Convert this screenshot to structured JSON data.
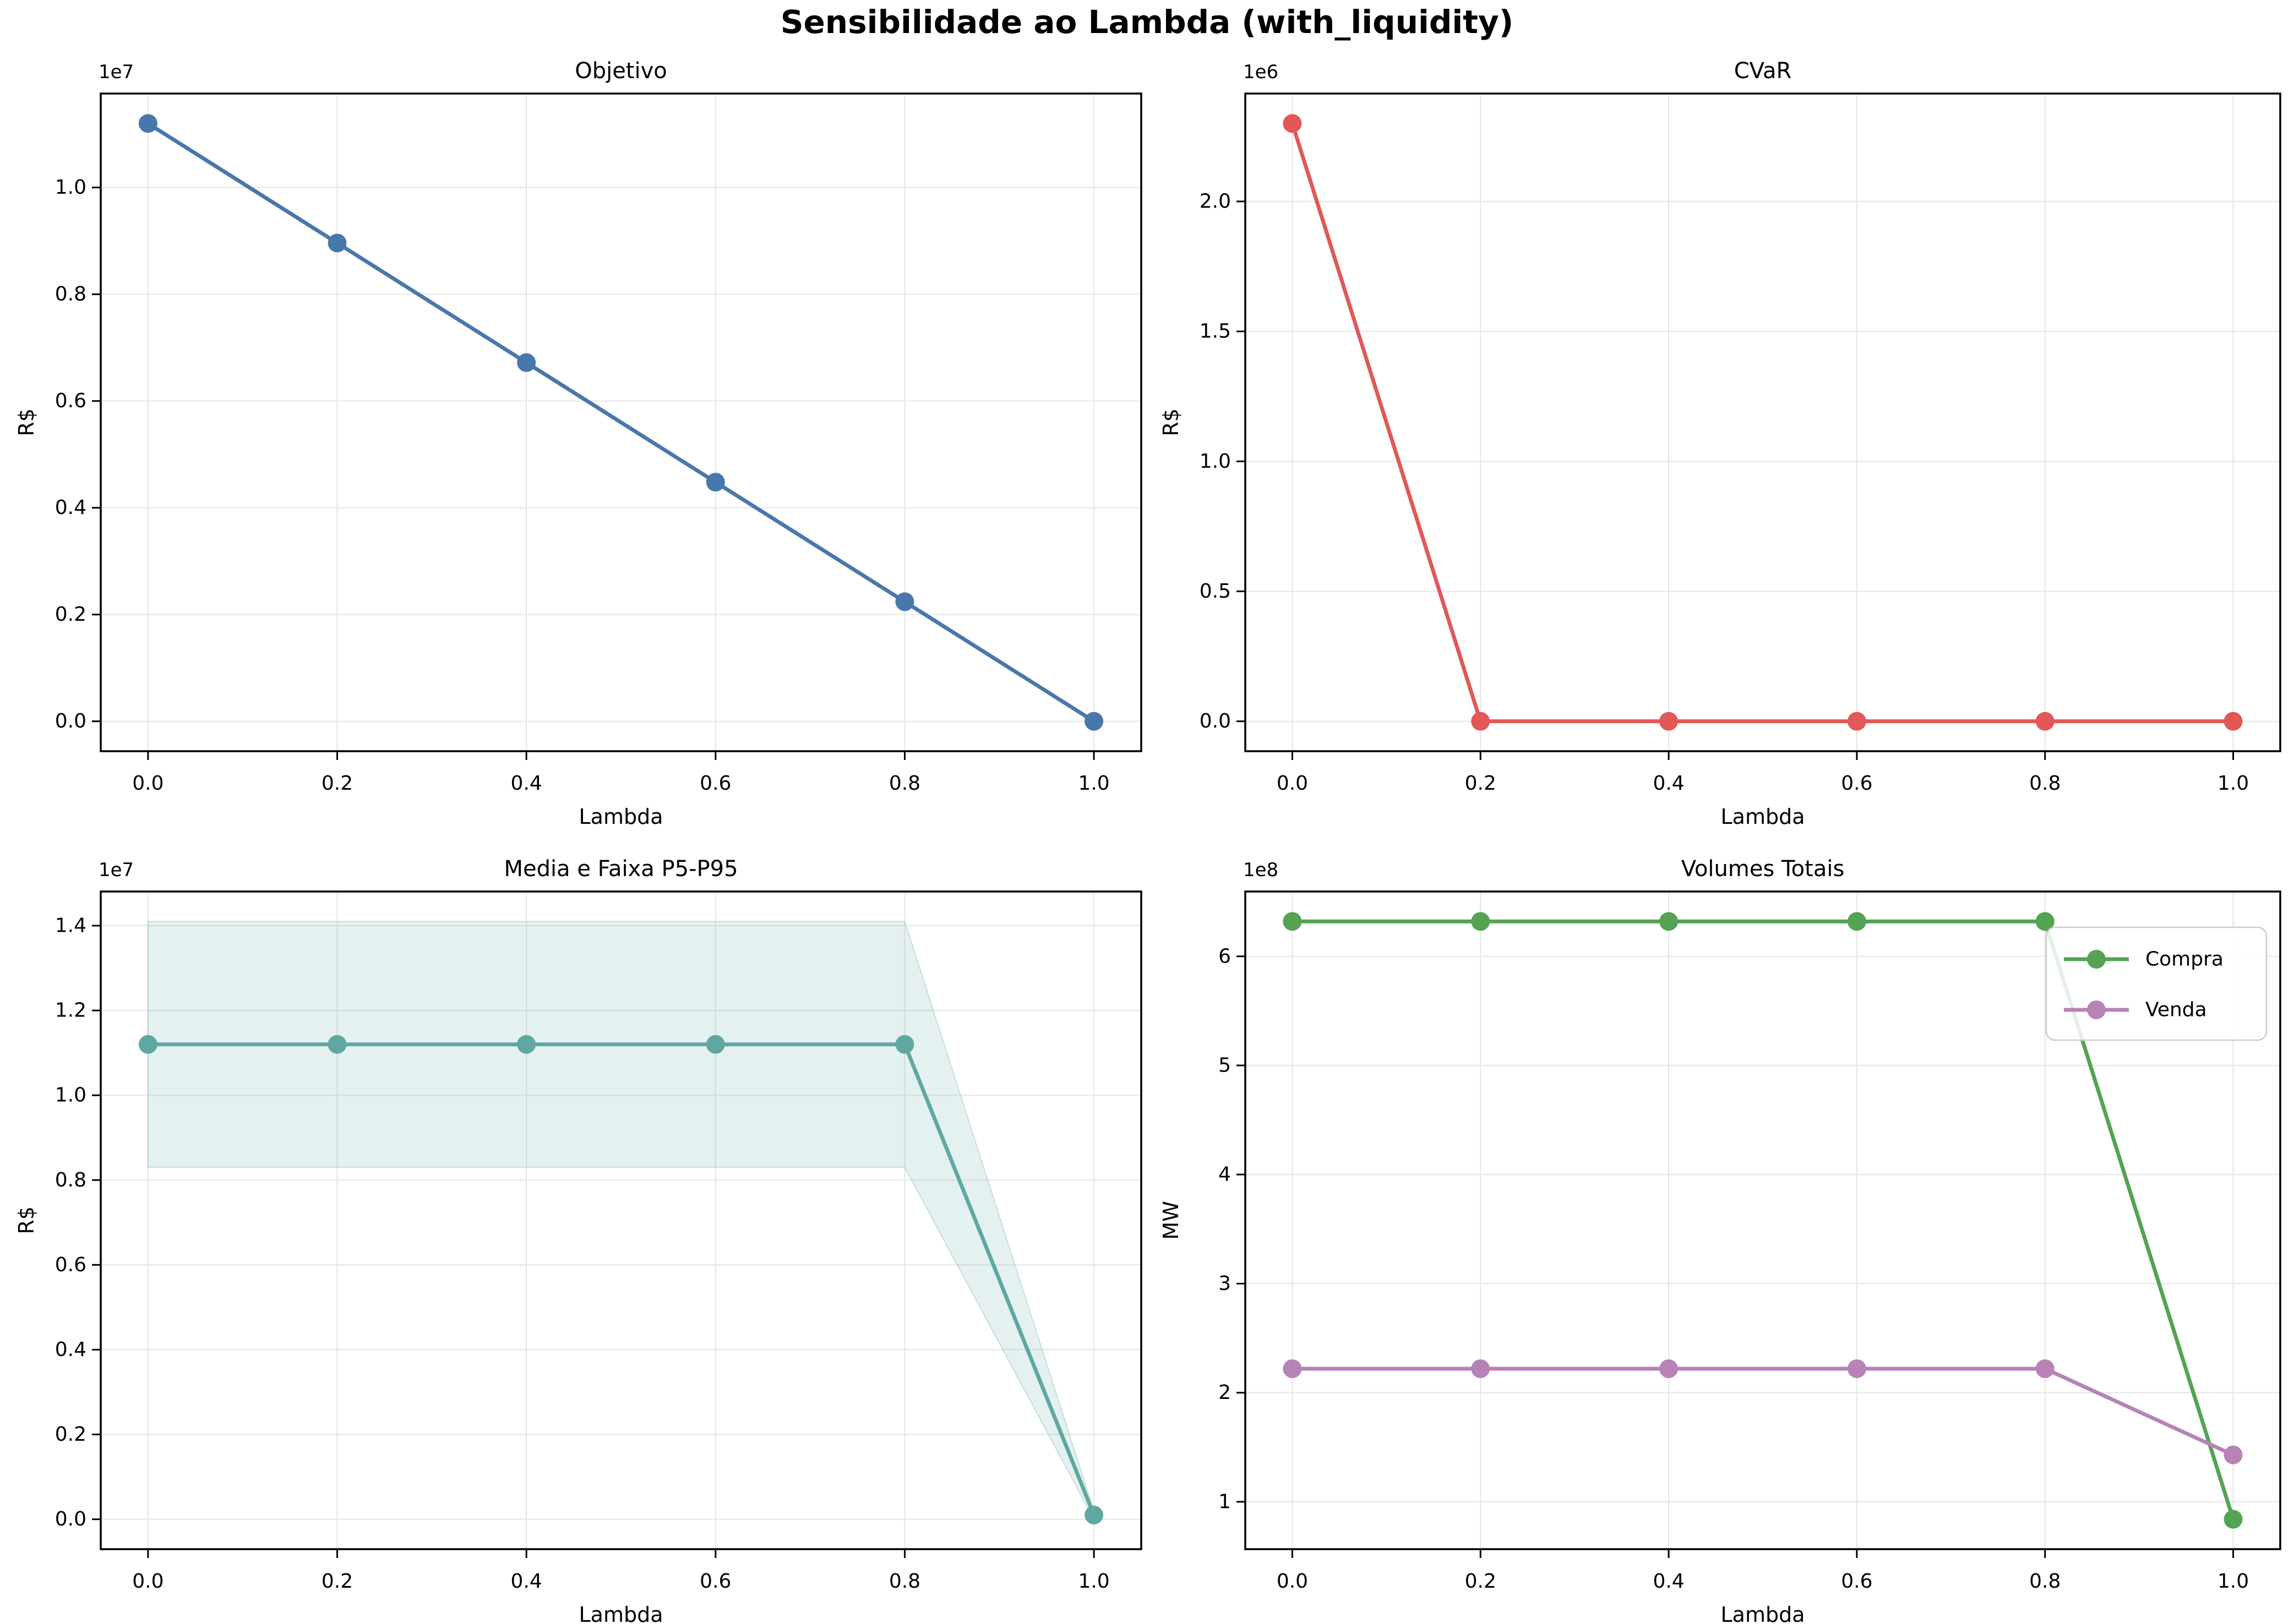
{
  "figure": {
    "title": "Sensibilidade ao Lambda (with_liquidity)"
  },
  "colors": {
    "objetivo_line": "#4878ab",
    "cvar_line": "#e25757",
    "media_line": "#5fa8a2",
    "faixa_band": "#5fa8a2",
    "compra_line": "#53a353",
    "venda_line": "#b783b7",
    "grid": "#e7e7e7",
    "spine": "#000000",
    "text": "#000000",
    "legend_border": "#cccccc"
  },
  "chart_data": [
    {
      "id": "objetivo",
      "type": "line",
      "title": "Objetivo",
      "xlabel": "Lambda",
      "ylabel": "R$",
      "offset_text": "1e7",
      "grid": true,
      "x": [
        0.0,
        0.2,
        0.4,
        0.6,
        0.8,
        1.0
      ],
      "xlim": [
        -0.05,
        1.05
      ],
      "xtick_values": [
        0.0,
        0.2,
        0.4,
        0.6,
        0.8,
        1.0
      ],
      "xtick_labels": [
        "0.0",
        "0.2",
        "0.4",
        "0.6",
        "0.8",
        "1.0"
      ],
      "ylim": [
        -560000,
        11760000
      ],
      "ytick_values": [
        0,
        2000000,
        4000000,
        6000000,
        8000000,
        10000000
      ],
      "ytick_labels": [
        "0.0",
        "0.2",
        "0.4",
        "0.6",
        "0.8",
        "1.0"
      ],
      "series": [
        {
          "name": "Objetivo",
          "color_key": "objetivo_line",
          "values": [
            11200000,
            8960000,
            6720000,
            4480000,
            2240000,
            0
          ]
        }
      ]
    },
    {
      "id": "cvar",
      "type": "line",
      "title": "CVaR",
      "xlabel": "Lambda",
      "ylabel": "R$",
      "offset_text": "1e6",
      "grid": true,
      "x": [
        0.0,
        0.2,
        0.4,
        0.6,
        0.8,
        1.0
      ],
      "xlim": [
        -0.05,
        1.05
      ],
      "xtick_values": [
        0.0,
        0.2,
        0.4,
        0.6,
        0.8,
        1.0
      ],
      "xtick_labels": [
        "0.0",
        "0.2",
        "0.4",
        "0.6",
        "0.8",
        "1.0"
      ],
      "ylim": [
        -115000,
        2415000
      ],
      "ytick_values": [
        0,
        500000,
        1000000,
        1500000,
        2000000
      ],
      "ytick_labels": [
        "0.0",
        "0.5",
        "1.0",
        "1.5",
        "2.0"
      ],
      "series": [
        {
          "name": "CVaR",
          "color_key": "cvar_line",
          "values": [
            2300000,
            0,
            0,
            0,
            0,
            0
          ]
        }
      ]
    },
    {
      "id": "media_faixa",
      "type": "line",
      "title": "Media e Faixa P5-P95",
      "xlabel": "Lambda",
      "ylabel": "R$",
      "offset_text": "1e7",
      "grid": true,
      "x": [
        0.0,
        0.2,
        0.4,
        0.6,
        0.8,
        1.0
      ],
      "xlim": [
        -0.05,
        1.05
      ],
      "xtick_values": [
        0.0,
        0.2,
        0.4,
        0.6,
        0.8,
        1.0
      ],
      "xtick_labels": [
        "0.0",
        "0.2",
        "0.4",
        "0.6",
        "0.8",
        "1.0"
      ],
      "ylim": [
        -705000,
        14805000
      ],
      "ytick_values": [
        0,
        2000000,
        4000000,
        6000000,
        8000000,
        10000000,
        12000000,
        14000000
      ],
      "ytick_labels": [
        "0.0",
        "0.2",
        "0.4",
        "0.6",
        "0.8",
        "1.0",
        "1.2",
        "1.4"
      ],
      "band": {
        "name": "Faixa P5-P95",
        "color_key": "faixa_band",
        "fill_opacity": 0.16,
        "edge_opacity": 0.3,
        "lower": [
          8300000,
          8300000,
          8300000,
          8300000,
          8300000,
          0
        ],
        "upper": [
          14100000,
          14100000,
          14100000,
          14100000,
          14100000,
          200000
        ]
      },
      "series": [
        {
          "name": "Media",
          "color_key": "media_line",
          "values": [
            11200000,
            11200000,
            11200000,
            11200000,
            11200000,
            100000
          ]
        }
      ]
    },
    {
      "id": "volumes",
      "type": "line",
      "title": "Volumes Totais",
      "xlabel": "Lambda",
      "ylabel": "MW",
      "offset_text": "1e8",
      "grid": true,
      "x": [
        0.0,
        0.2,
        0.4,
        0.6,
        0.8,
        1.0
      ],
      "xlim": [
        -0.05,
        1.05
      ],
      "xtick_values": [
        0.0,
        0.2,
        0.4,
        0.6,
        0.8,
        1.0
      ],
      "xtick_labels": [
        "0.0",
        "0.2",
        "0.4",
        "0.6",
        "0.8",
        "1.0"
      ],
      "ylim": [
        56600000,
        659400000
      ],
      "ytick_values": [
        100000000,
        200000000,
        300000000,
        400000000,
        500000000,
        600000000
      ],
      "ytick_labels": [
        "1",
        "2",
        "3",
        "4",
        "5",
        "6"
      ],
      "legend": {
        "loc": "upper right",
        "entries": [
          "Compra",
          "Venda"
        ]
      },
      "series": [
        {
          "name": "Compra",
          "color_key": "compra_line",
          "values": [
            632000000,
            632000000,
            632000000,
            632000000,
            632000000,
            84000000
          ]
        },
        {
          "name": "Venda",
          "color_key": "venda_line",
          "values": [
            222000000,
            222000000,
            222000000,
            222000000,
            222000000,
            143000000
          ]
        }
      ]
    }
  ]
}
